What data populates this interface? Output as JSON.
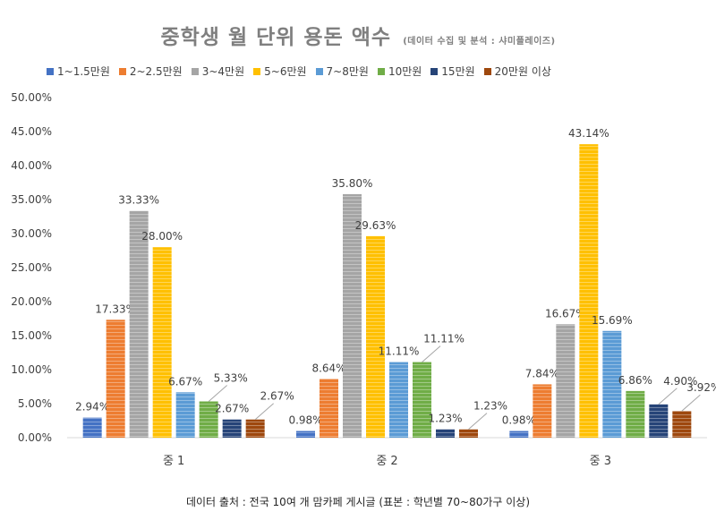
{
  "chart_data": {
    "type": "bar",
    "title": "중학생 월 단위 용돈 액수",
    "subtitle": "(데이터 수집 및 분석 : 샤미플레이즈)",
    "categories": [
      "중 1",
      "중 2",
      "중 3"
    ],
    "ylim": [
      0,
      50
    ],
    "yticks": [
      "0.00%",
      "5.00%",
      "10.00%",
      "15.00%",
      "20.00%",
      "25.00%",
      "30.00%",
      "35.00%",
      "40.00%",
      "45.00%",
      "50.00%"
    ],
    "grid": false,
    "legend_position": "top",
    "series": [
      {
        "name": "1~1.5만원",
        "color": "#4472c4",
        "values": [
          2.94,
          0.98,
          0.98
        ],
        "labels": [
          "2.94%",
          "0.98%",
          "0.98%"
        ]
      },
      {
        "name": "2~2.5만원",
        "color": "#ed7d31",
        "values": [
          17.33,
          8.64,
          7.84
        ],
        "labels": [
          "17.33%",
          "8.64%",
          "7.84%"
        ]
      },
      {
        "name": "3~4만원",
        "color": "#a5a5a5",
        "values": [
          33.33,
          35.8,
          16.67
        ],
        "labels": [
          "33.33%",
          "35.80%",
          "16.67%"
        ]
      },
      {
        "name": "5~6만원",
        "color": "#ffc000",
        "values": [
          28.0,
          29.63,
          43.14
        ],
        "labels": [
          "28.00%",
          "29.63%",
          "43.14%"
        ]
      },
      {
        "name": "7~8만원",
        "color": "#5b9bd5",
        "values": [
          6.67,
          11.11,
          15.69
        ],
        "labels": [
          "6.67%",
          "11.11%",
          "15.69%"
        ]
      },
      {
        "name": "10만원",
        "color": "#70ad47",
        "values": [
          5.33,
          11.11,
          6.86
        ],
        "labels": [
          "5.33%",
          "11.11%",
          "6.86%"
        ]
      },
      {
        "name": "15만원",
        "color": "#264478",
        "values": [
          2.67,
          1.23,
          4.9
        ],
        "labels": [
          "2.67%",
          "1.23%",
          "4.90%"
        ]
      },
      {
        "name": "20만원 이상",
        "color": "#9e480e",
        "values": [
          2.67,
          1.23,
          3.92
        ],
        "labels": [
          "2.67%",
          "1.23%",
          "3.92%"
        ]
      }
    ]
  },
  "footer": "데이터 출처 : 전국 10여 개 맘카페 게시글 (표본 : 학년별 70~80가구 이상)"
}
